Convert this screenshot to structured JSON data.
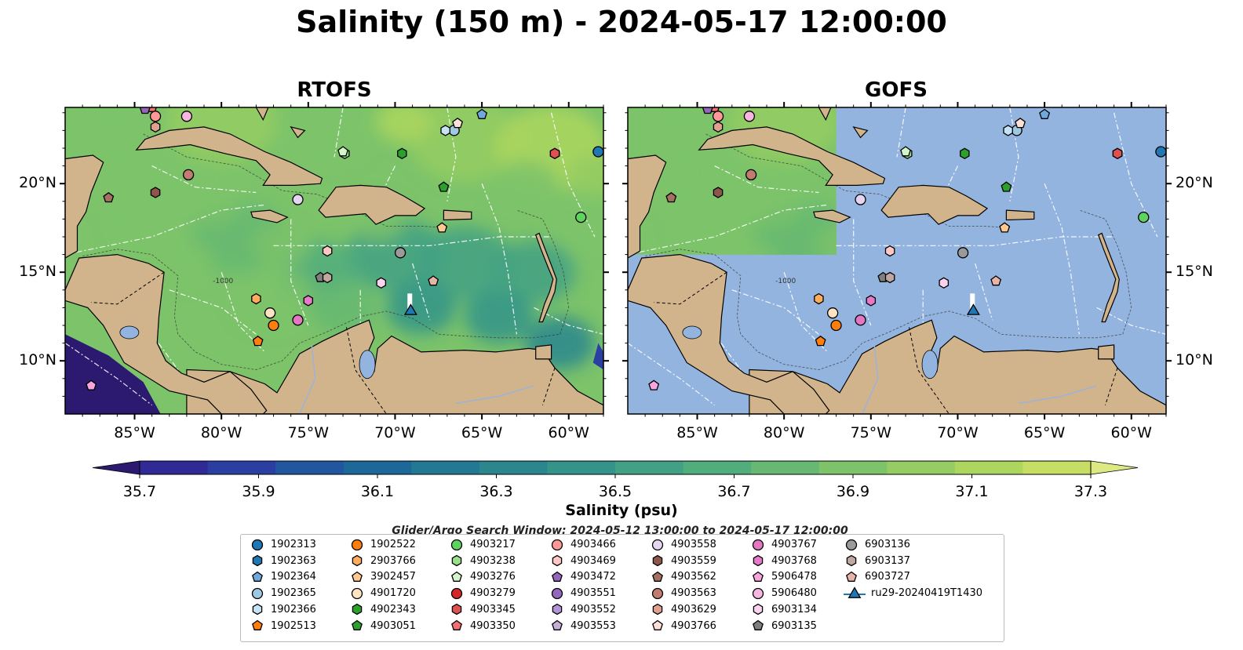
{
  "title": "Salinity (150 m) - 2024-05-17 12:00:00",
  "panels": [
    {
      "title": "RTOFS",
      "model_coverage": "full"
    },
    {
      "title": "GOFS",
      "model_coverage": "partial (northwest Caribbean only)"
    }
  ],
  "map": {
    "lon_range": [
      -89,
      -58
    ],
    "lat_range": [
      7,
      24.3
    ],
    "lon_ticks": [
      "85°W",
      "80°W",
      "75°W",
      "70°W",
      "65°W",
      "60°W"
    ],
    "lat_ticks": [
      "20°N",
      "15°N",
      "10°N"
    ],
    "bathymetry_contour_label": "-1000",
    "colors": {
      "land": "#d2b48c",
      "ocean_no_data": "#94b4e0",
      "eez_lines": "#ffffff"
    }
  },
  "colorbar": {
    "label": "Salinity (psu)",
    "tick_labels": [
      "35.7",
      "35.9",
      "36.1",
      "36.3",
      "36.5",
      "36.7",
      "36.9",
      "37.1",
      "37.3"
    ],
    "min": 35.6,
    "max": 37.4,
    "step": 0.1,
    "extend": "both",
    "colors": [
      "#2b1a70",
      "#2f2a96",
      "#2b3fa2",
      "#22569e",
      "#1d6898",
      "#237893",
      "#2b868e",
      "#34948a",
      "#42a184",
      "#52ad7c",
      "#66b872",
      "#7cc36a",
      "#95cd62",
      "#add65e",
      "#c6de63",
      "#ddea83"
    ]
  },
  "search_window": "Glider/Argo Search Window: 2024-05-12 13:00:00 to 2024-05-17 12:00:00",
  "legend": [
    {
      "label": "1902313",
      "color": "#1f77b4",
      "marker": "circle"
    },
    {
      "label": "1902363",
      "color": "#1f77b4",
      "marker": "hexagon"
    },
    {
      "label": "1902364",
      "color": "#6fa8dc",
      "marker": "pentagon"
    },
    {
      "label": "1902365",
      "color": "#9ecae1",
      "marker": "circle"
    },
    {
      "label": "1902366",
      "color": "#c6e2f5",
      "marker": "hexagon"
    },
    {
      "label": "1902513",
      "color": "#ff7f0e",
      "marker": "pentagon"
    },
    {
      "label": "1902522",
      "color": "#ff7f0e",
      "marker": "circle"
    },
    {
      "label": "2903766",
      "color": "#ffad5c",
      "marker": "hexagon"
    },
    {
      "label": "3902457",
      "color": "#ffc98f",
      "marker": "pentagon"
    },
    {
      "label": "4901720",
      "color": "#ffe4c4",
      "marker": "circle"
    },
    {
      "label": "4902343",
      "color": "#2ca02c",
      "marker": "hexagon"
    },
    {
      "label": "4903051",
      "color": "#2ca02c",
      "marker": "pentagon"
    },
    {
      "label": "4903217",
      "color": "#5fd35f",
      "marker": "circle"
    },
    {
      "label": "4903238",
      "color": "#98df8a",
      "marker": "hexagon"
    },
    {
      "label": "4903276",
      "color": "#d4f5c9",
      "marker": "pentagon"
    },
    {
      "label": "4903279",
      "color": "#d62728",
      "marker": "circle"
    },
    {
      "label": "4903345",
      "color": "#e05050",
      "marker": "hexagon"
    },
    {
      "label": "4903350",
      "color": "#f07070",
      "marker": "pentagon"
    },
    {
      "label": "4903466",
      "color": "#ff9896",
      "marker": "circle"
    },
    {
      "label": "4903469",
      "color": "#ffc7c6",
      "marker": "hexagon"
    },
    {
      "label": "4903472",
      "color": "#9467bd",
      "marker": "pentagon"
    },
    {
      "label": "4903551",
      "color": "#9467bd",
      "marker": "circle"
    },
    {
      "label": "4903552",
      "color": "#b193d6",
      "marker": "hexagon"
    },
    {
      "label": "4903553",
      "color": "#c5b0d5",
      "marker": "pentagon"
    },
    {
      "label": "4903558",
      "color": "#e4d5f0",
      "marker": "circle"
    },
    {
      "label": "4903559",
      "color": "#8c564b",
      "marker": "hexagon"
    },
    {
      "label": "4903562",
      "color": "#a5705f",
      "marker": "pentagon"
    },
    {
      "label": "4903563",
      "color": "#c07c6e",
      "marker": "circle"
    },
    {
      "label": "4903629",
      "color": "#e0a090",
      "marker": "hexagon"
    },
    {
      "label": "4903766",
      "color": "#fde0d8",
      "marker": "pentagon"
    },
    {
      "label": "4903767",
      "color": "#e377c2",
      "marker": "circle"
    },
    {
      "label": "4903768",
      "color": "#e67ac8",
      "marker": "hexagon"
    },
    {
      "label": "5906478",
      "color": "#f7a6dd",
      "marker": "pentagon"
    },
    {
      "label": "5906480",
      "color": "#f7b6e0",
      "marker": "circle"
    },
    {
      "label": "6903134",
      "color": "#fbd3ee",
      "marker": "hexagon"
    },
    {
      "label": "6903135",
      "color": "#7f7f7f",
      "marker": "pentagon"
    },
    {
      "label": "6903136",
      "color": "#9a9a9a",
      "marker": "circle"
    },
    {
      "label": "6903137",
      "color": "#c0a8a0",
      "marker": "hexagon"
    },
    {
      "label": "6903727",
      "color": "#e8b4a8",
      "marker": "pentagon"
    },
    {
      "label": "ru29-20240419T1430",
      "color": "#1f77b4",
      "marker": "triangle-line"
    }
  ],
  "floats": [
    {
      "id": "1902313",
      "lon": -58.3,
      "lat": 21.8
    },
    {
      "id": "1902363",
      "lon": -60.8,
      "lat": 21.7
    },
    {
      "id": "1902364",
      "lon": -65.0,
      "lat": 23.9
    },
    {
      "id": "1902365",
      "lon": -66.6,
      "lat": 23.0
    },
    {
      "id": "1902366",
      "lon": -67.1,
      "lat": 23.0
    },
    {
      "id": "1902513",
      "lon": -77.9,
      "lat": 11.1
    },
    {
      "id": "1902522",
      "lon": -77.0,
      "lat": 12.0
    },
    {
      "id": "2903766",
      "lon": -78.0,
      "lat": 13.5
    },
    {
      "id": "3902457",
      "lon": -67.3,
      "lat": 17.5
    },
    {
      "id": "4901720",
      "lon": -77.2,
      "lat": 12.7
    },
    {
      "id": "4902343",
      "lon": -69.6,
      "lat": 21.7
    },
    {
      "id": "4903051",
      "lon": -67.2,
      "lat": 19.8
    },
    {
      "id": "4903217",
      "lon": -59.3,
      "lat": 18.1
    },
    {
      "id": "4903238",
      "lon": -72.9,
      "lat": 21.7
    },
    {
      "id": "4903276",
      "lon": -73.0,
      "lat": 21.8
    },
    {
      "id": "4903345",
      "lon": -60.8,
      "lat": 21.7
    },
    {
      "id": "4903350",
      "lon": -84.0,
      "lat": 24.3
    },
    {
      "id": "4903466",
      "lon": -83.8,
      "lat": 23.8
    },
    {
      "id": "4903469",
      "lon": -73.9,
      "lat": 16.2
    },
    {
      "id": "4903472",
      "lon": -84.4,
      "lat": 24.2
    },
    {
      "id": "4903558",
      "lon": -75.6,
      "lat": 19.1
    },
    {
      "id": "4903559",
      "lon": -83.8,
      "lat": 19.5
    },
    {
      "id": "4903562",
      "lon": -86.5,
      "lat": 19.2
    },
    {
      "id": "4903563",
      "lon": -81.9,
      "lat": 20.5
    },
    {
      "id": "4903629",
      "lon": -83.8,
      "lat": 23.2
    },
    {
      "id": "4903766",
      "lon": -66.4,
      "lat": 23.4
    },
    {
      "id": "4903767",
      "lon": -75.6,
      "lat": 12.3
    },
    {
      "id": "4903768",
      "lon": -75.0,
      "lat": 13.4
    },
    {
      "id": "5906478",
      "lon": -87.5,
      "lat": 8.6
    },
    {
      "id": "5906480",
      "lon": -82.0,
      "lat": 23.8
    },
    {
      "id": "6903134",
      "lon": -70.8,
      "lat": 14.4
    },
    {
      "id": "6903135",
      "lon": -74.3,
      "lat": 14.7
    },
    {
      "id": "6903136",
      "lon": -69.7,
      "lat": 16.1
    },
    {
      "id": "6903137",
      "lon": -73.9,
      "lat": 14.7
    },
    {
      "id": "6903727",
      "lon": -67.8,
      "lat": 14.5
    },
    {
      "id": "ru29-20240419T1430",
      "lon": -69.1,
      "lat": 12.8
    }
  ]
}
